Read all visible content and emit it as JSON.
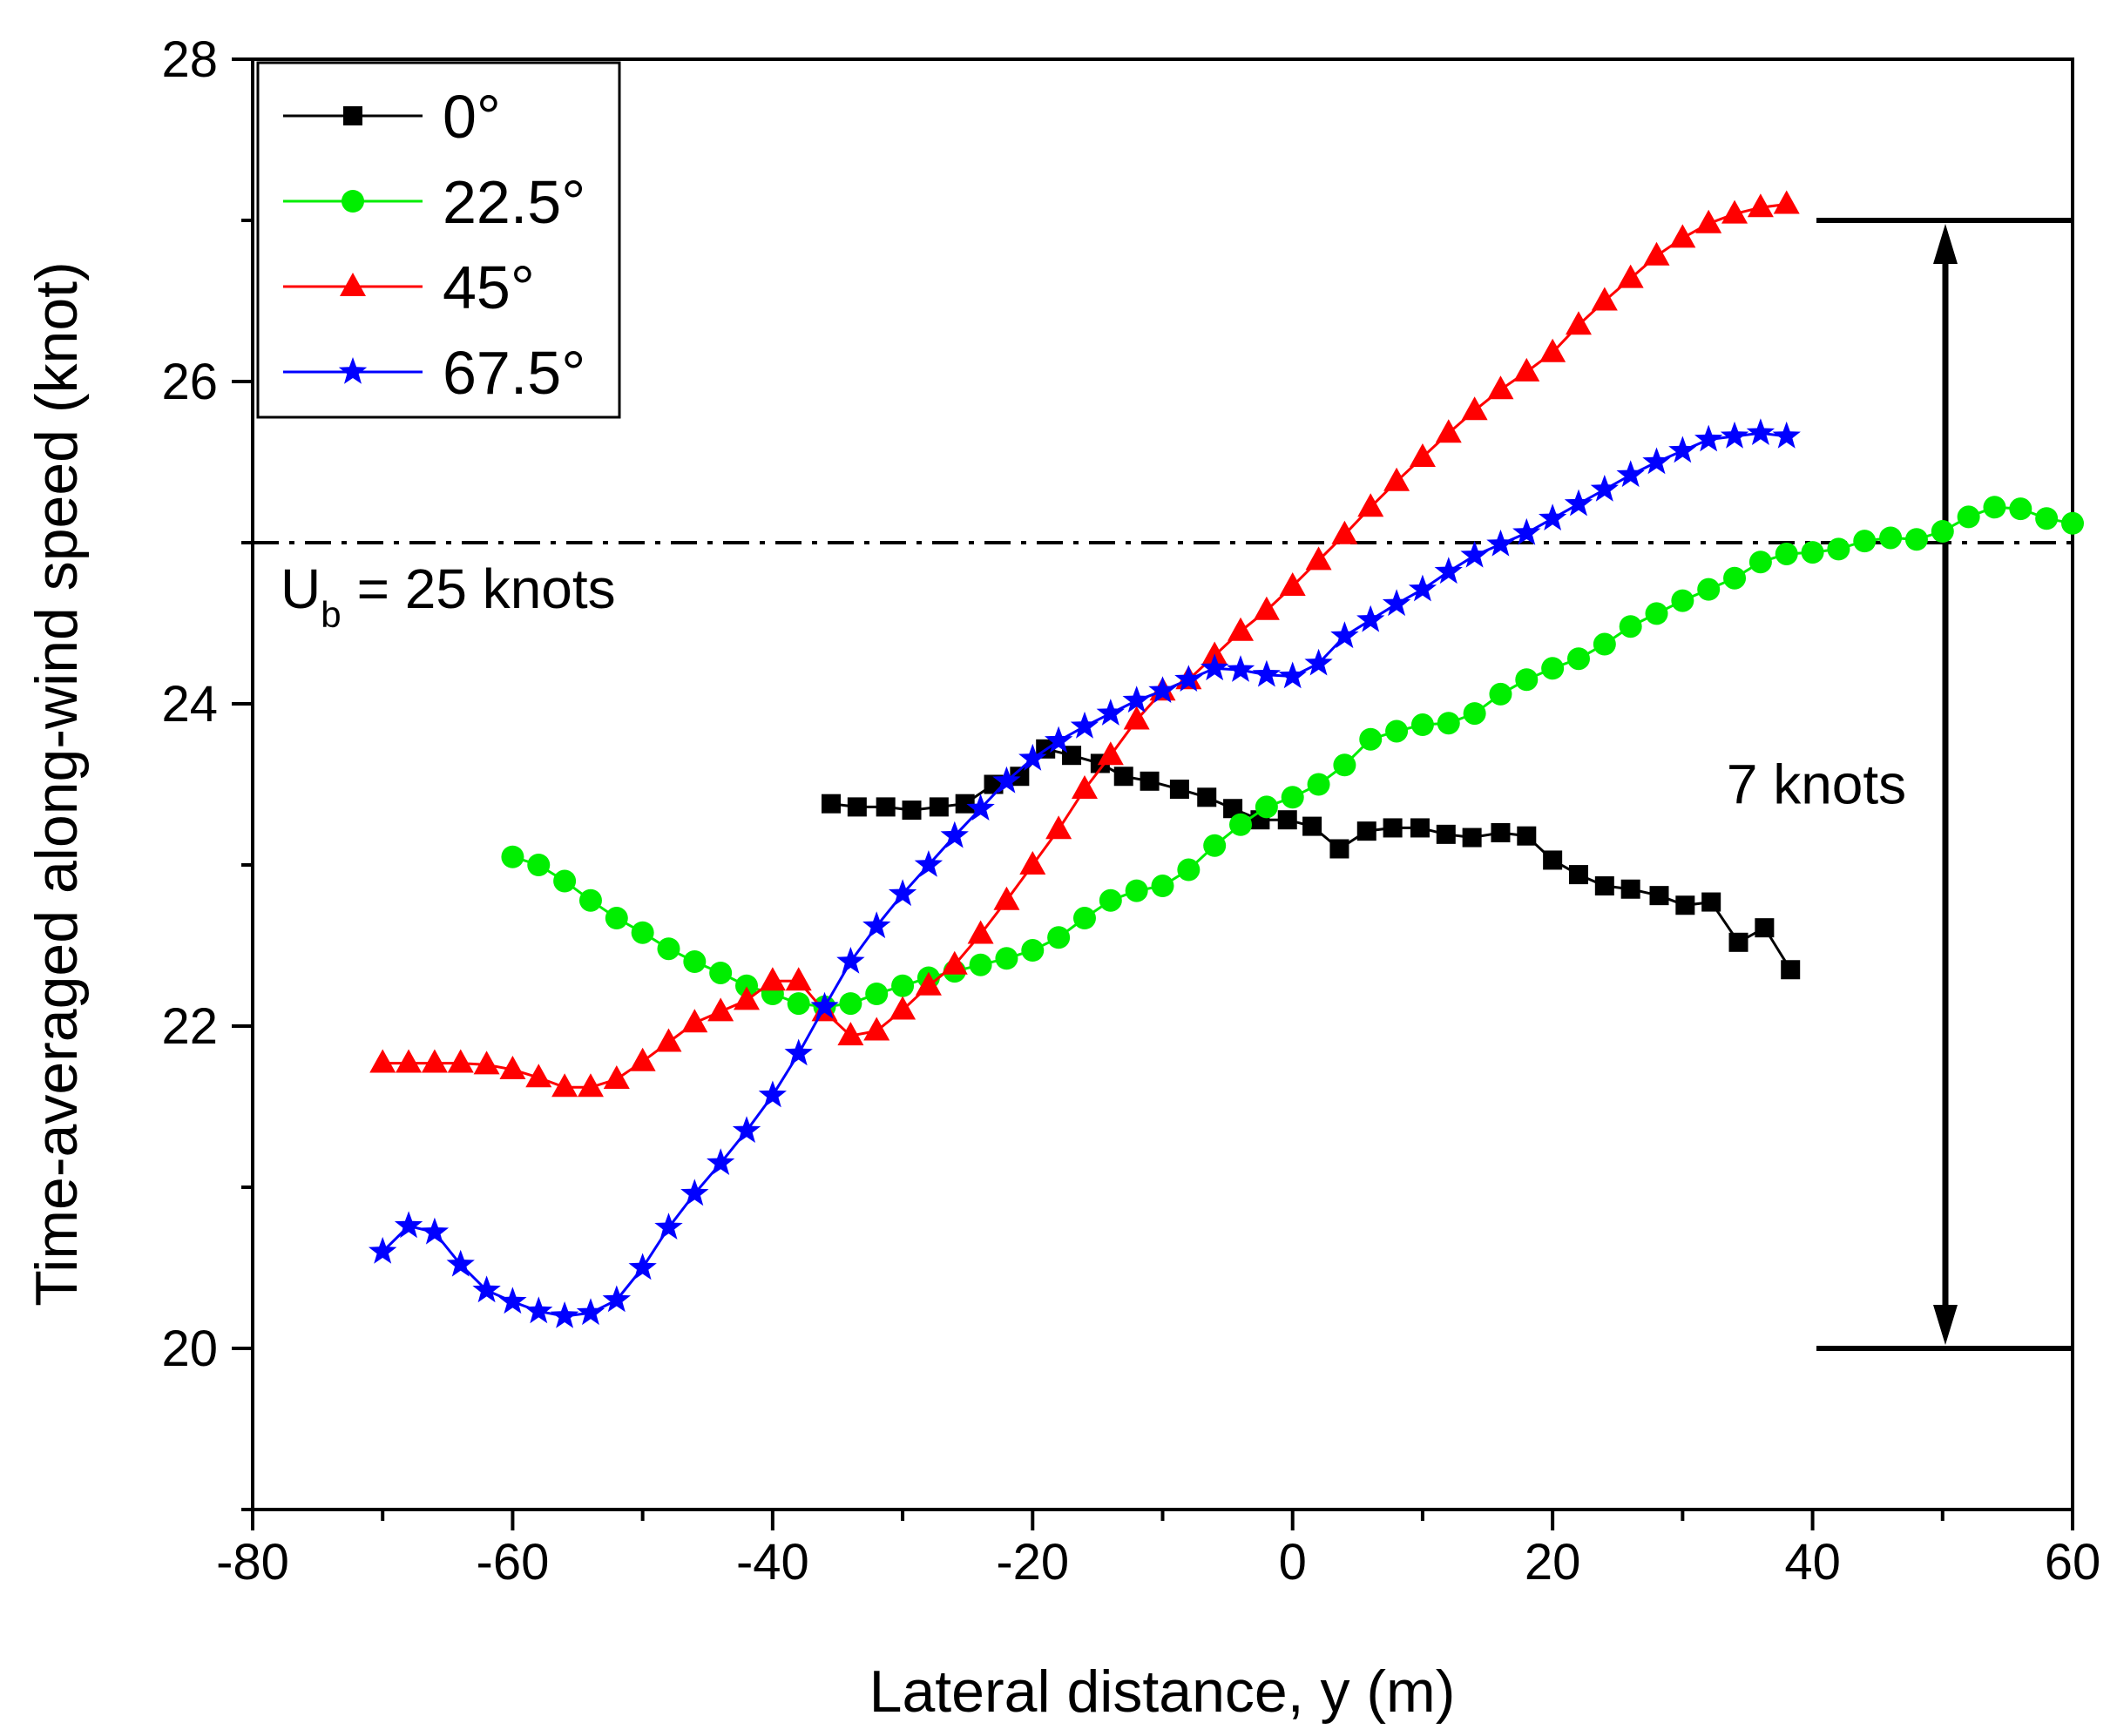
{
  "chart_data": {
    "type": "line",
    "title": "",
    "xlabel": "Lateral distance, y (m)",
    "ylabel": "Time-averaged along-wind speed (knot)",
    "xlim": [
      -80,
      60
    ],
    "ylim": [
      19,
      28
    ],
    "xticks": [
      -80,
      -60,
      -40,
      -20,
      0,
      20,
      40,
      60
    ],
    "yticks": [
      20,
      22,
      24,
      26,
      28
    ],
    "legend_position": "top-left",
    "series": [
      {
        "name": "0°",
        "color": "#000000",
        "marker": "square",
        "x": [
          -35.5,
          -33.5,
          -31.3,
          -29.3,
          -27.2,
          -25.2,
          -23,
          -21,
          -19,
          -17,
          -14.8,
          -13,
          -11,
          -8.7,
          -6.6,
          -4.6,
          -2.5,
          -0.4,
          1.5,
          3.6,
          5.7,
          7.7,
          9.8,
          11.8,
          13.8,
          16,
          18,
          20,
          22,
          24,
          26,
          28.2,
          30.2,
          32.2,
          34.3,
          36.3,
          38.3
        ],
        "y": [
          23.38,
          23.36,
          23.36,
          23.34,
          23.36,
          23.38,
          23.5,
          23.55,
          23.72,
          23.68,
          23.63,
          23.55,
          23.52,
          23.47,
          23.42,
          23.35,
          23.28,
          23.28,
          23.24,
          23.1,
          23.21,
          23.23,
          23.23,
          23.19,
          23.17,
          23.2,
          23.18,
          23.03,
          22.94,
          22.87,
          22.85,
          22.81,
          22.75,
          22.77,
          22.52,
          22.61,
          22.35
        ]
      },
      {
        "name": "22.5°",
        "color": "#00ee00",
        "marker": "circle",
        "x": [
          -60,
          -58,
          -56,
          -54,
          -52,
          -50,
          -48,
          -46,
          -44,
          -42,
          -40,
          -38,
          -36,
          -34,
          -32,
          -30,
          -28,
          -26,
          -24,
          -22,
          -20,
          -18,
          -16,
          -14,
          -12,
          -10,
          -8,
          -6,
          -4,
          -2,
          0,
          2,
          4,
          6,
          8,
          10,
          12,
          14,
          16,
          18,
          20,
          22,
          24,
          26,
          28,
          30,
          32,
          34,
          36,
          38,
          40,
          42,
          44,
          46,
          48,
          50,
          52,
          54,
          56,
          58,
          60
        ],
        "y": [
          23.05,
          23.0,
          22.9,
          22.78,
          22.67,
          22.58,
          22.48,
          22.4,
          22.33,
          22.25,
          22.2,
          22.14,
          22.12,
          22.14,
          22.2,
          22.25,
          22.3,
          22.34,
          22.38,
          22.42,
          22.47,
          22.55,
          22.67,
          22.78,
          22.84,
          22.87,
          22.97,
          23.12,
          23.25,
          23.36,
          23.42,
          23.5,
          23.62,
          23.78,
          23.83,
          23.87,
          23.88,
          23.94,
          24.06,
          24.15,
          24.22,
          24.28,
          24.37,
          24.48,
          24.56,
          24.64,
          24.71,
          24.78,
          24.88,
          24.93,
          24.94,
          24.96,
          25.01,
          25.03,
          25.02,
          25.07,
          25.16,
          25.22,
          25.21,
          25.15,
          25.12
        ]
      },
      {
        "name": "45°",
        "color": "#ff0000",
        "marker": "triangle",
        "x": [
          -70,
          -68,
          -66,
          -64,
          -62,
          -60,
          -58,
          -56,
          -54,
          -52,
          -50,
          -48,
          -46,
          -44,
          -42,
          -40,
          -38,
          -36,
          -34,
          -32,
          -30,
          -28,
          -26,
          -24,
          -22,
          -20,
          -18,
          -16,
          -14,
          -12,
          -10,
          -8,
          -6,
          -4,
          -2,
          0,
          2,
          4,
          6,
          8,
          10,
          12,
          14,
          16,
          18,
          20,
          22,
          24,
          26,
          28,
          30,
          32,
          34,
          36,
          38
        ],
        "y": [
          21.77,
          21.77,
          21.77,
          21.77,
          21.76,
          21.73,
          21.68,
          21.62,
          21.62,
          21.67,
          21.78,
          21.9,
          22.02,
          22.09,
          22.16,
          22.28,
          22.28,
          22.09,
          21.94,
          21.97,
          22.1,
          22.25,
          22.38,
          22.57,
          22.78,
          23.0,
          23.22,
          23.47,
          23.68,
          23.9,
          24.08,
          24.15,
          24.3,
          24.45,
          24.58,
          24.73,
          24.89,
          25.05,
          25.22,
          25.38,
          25.53,
          25.68,
          25.82,
          25.95,
          26.06,
          26.18,
          26.35,
          26.5,
          26.64,
          26.78,
          26.89,
          26.98,
          27.04,
          27.08,
          27.1
        ]
      },
      {
        "name": "67.5°",
        "color": "#0000ff",
        "marker": "star",
        "x": [
          -70,
          -68,
          -66,
          -64,
          -62,
          -60,
          -58,
          -56,
          -54,
          -52,
          -50,
          -48,
          -46,
          -44,
          -42,
          -40,
          -38,
          -36,
          -34,
          -32,
          -30,
          -28,
          -26,
          -24,
          -22,
          -20,
          -18,
          -16,
          -14,
          -12,
          -10,
          -8,
          -6,
          -4,
          -2,
          0,
          2,
          4,
          6,
          8,
          10,
          12,
          14,
          16,
          18,
          20,
          22,
          24,
          26,
          28,
          30,
          32,
          34,
          36,
          38
        ],
        "y": [
          20.6,
          20.76,
          20.72,
          20.52,
          20.36,
          20.29,
          20.23,
          20.2,
          20.22,
          20.3,
          20.5,
          20.75,
          20.96,
          21.15,
          21.35,
          21.57,
          21.83,
          22.12,
          22.4,
          22.62,
          22.82,
          23.0,
          23.18,
          23.35,
          23.52,
          23.66,
          23.77,
          23.86,
          23.94,
          24.02,
          24.08,
          24.15,
          24.22,
          24.21,
          24.18,
          24.17,
          24.25,
          24.42,
          24.52,
          24.62,
          24.71,
          24.82,
          24.92,
          24.99,
          25.06,
          25.15,
          25.24,
          25.33,
          25.42,
          25.5,
          25.57,
          25.64,
          25.66,
          25.68,
          25.66
        ]
      }
    ],
    "annotations": {
      "reference_value": 25,
      "reference_label_main": "U",
      "reference_label_sub": "b",
      "reference_label_rest": "= 25 knots",
      "range_top": 27,
      "range_bottom": 20,
      "range_label": "7 knots"
    }
  }
}
